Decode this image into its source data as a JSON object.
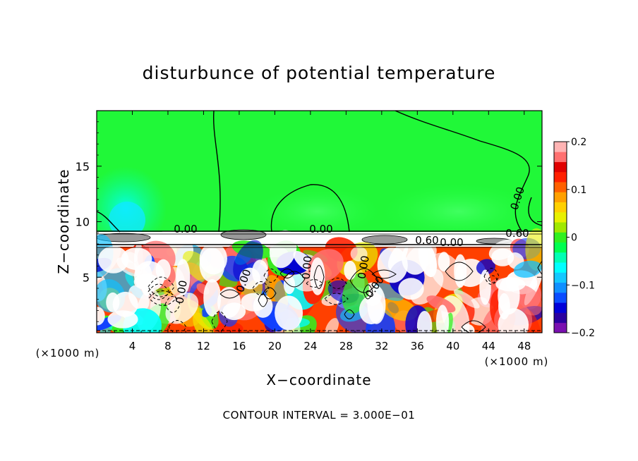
{
  "chart_data": {
    "type": "heatmap",
    "title": "disturbunce of potential temperature",
    "xlabel": "X−coordinate",
    "ylabel": "Z−coordinate",
    "x_unit": "(×1000 m)",
    "x_unit_right": "(×1000 m)",
    "xlim": [
      0,
      50
    ],
    "ylim": [
      0,
      20
    ],
    "x_ticks": [
      4,
      8,
      12,
      16,
      20,
      24,
      28,
      32,
      36,
      40,
      44,
      48
    ],
    "x_tick_labels": [
      "4",
      "8",
      "12",
      "16",
      "20",
      "24",
      "28",
      "32",
      "36",
      "40",
      "44",
      "48"
    ],
    "y_ticks": [
      5,
      10,
      15
    ],
    "y_tick_labels": [
      "5",
      "10",
      "15"
    ],
    "colorbar": {
      "range": [
        -0.2,
        0.2
      ],
      "ticks": [
        0.2,
        0.1,
        0,
        -0.1,
        -0.2
      ],
      "tick_labels": [
        "0.2",
        "0.1",
        "0",
        "−0.1",
        "−0.2"
      ],
      "colors": [
        "#7a10b0",
        "#2a00a0",
        "#0000d8",
        "#0a4cff",
        "#1090ff",
        "#14c8ff",
        "#00ffff",
        "#00ffb4",
        "#00ff50",
        "#30f020",
        "#a0e800",
        "#e8f000",
        "#ffd000",
        "#ffa000",
        "#ff6000",
        "#ff2000",
        "#e00000",
        "#ff7070",
        "#ffb4b4"
      ]
    },
    "contour_labels": [
      "0.00",
      "0.00",
      "0.00",
      "0.60",
      "0.60",
      "0.00",
      "0.00",
      "0.00",
      "0.00",
      "0.00",
      "0.00"
    ],
    "footnote": "CONTOUR INTERVAL = 3.000E−01"
  }
}
